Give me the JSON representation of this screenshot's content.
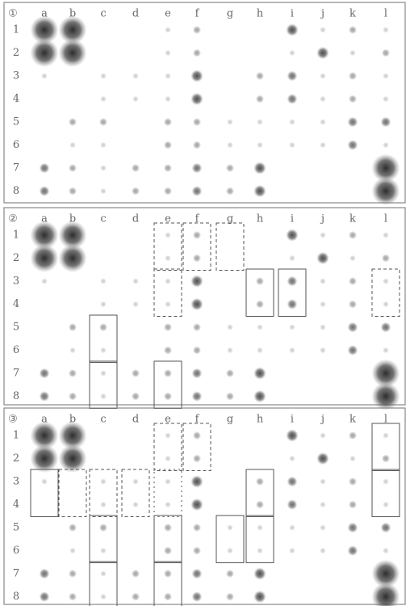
{
  "panels": [
    {
      "label": "①",
      "columns": [
        "a",
        "b",
        "c",
        "d",
        "e",
        "f",
        "g",
        "h",
        "i",
        "j",
        "k",
        "l"
      ],
      "rows": [
        "1",
        "2",
        "3",
        "4",
        "5",
        "6",
        "7",
        "8"
      ]
    },
    {
      "label": "②",
      "columns": [
        "a",
        "b",
        "c",
        "d",
        "e",
        "f",
        "g",
        "h",
        "i",
        "j",
        "k",
        "l"
      ],
      "rows": [
        "1",
        "2",
        "3",
        "4",
        "5",
        "6",
        "7",
        "8"
      ]
    },
    {
      "label": "③",
      "columns": [
        "a",
        "b",
        "c",
        "d",
        "e",
        "f",
        "g",
        "h",
        "i",
        "j",
        "k",
        "l"
      ],
      "rows": [
        "1",
        "2",
        "3",
        "4",
        "5",
        "6",
        "7",
        "8"
      ]
    }
  ]
}
